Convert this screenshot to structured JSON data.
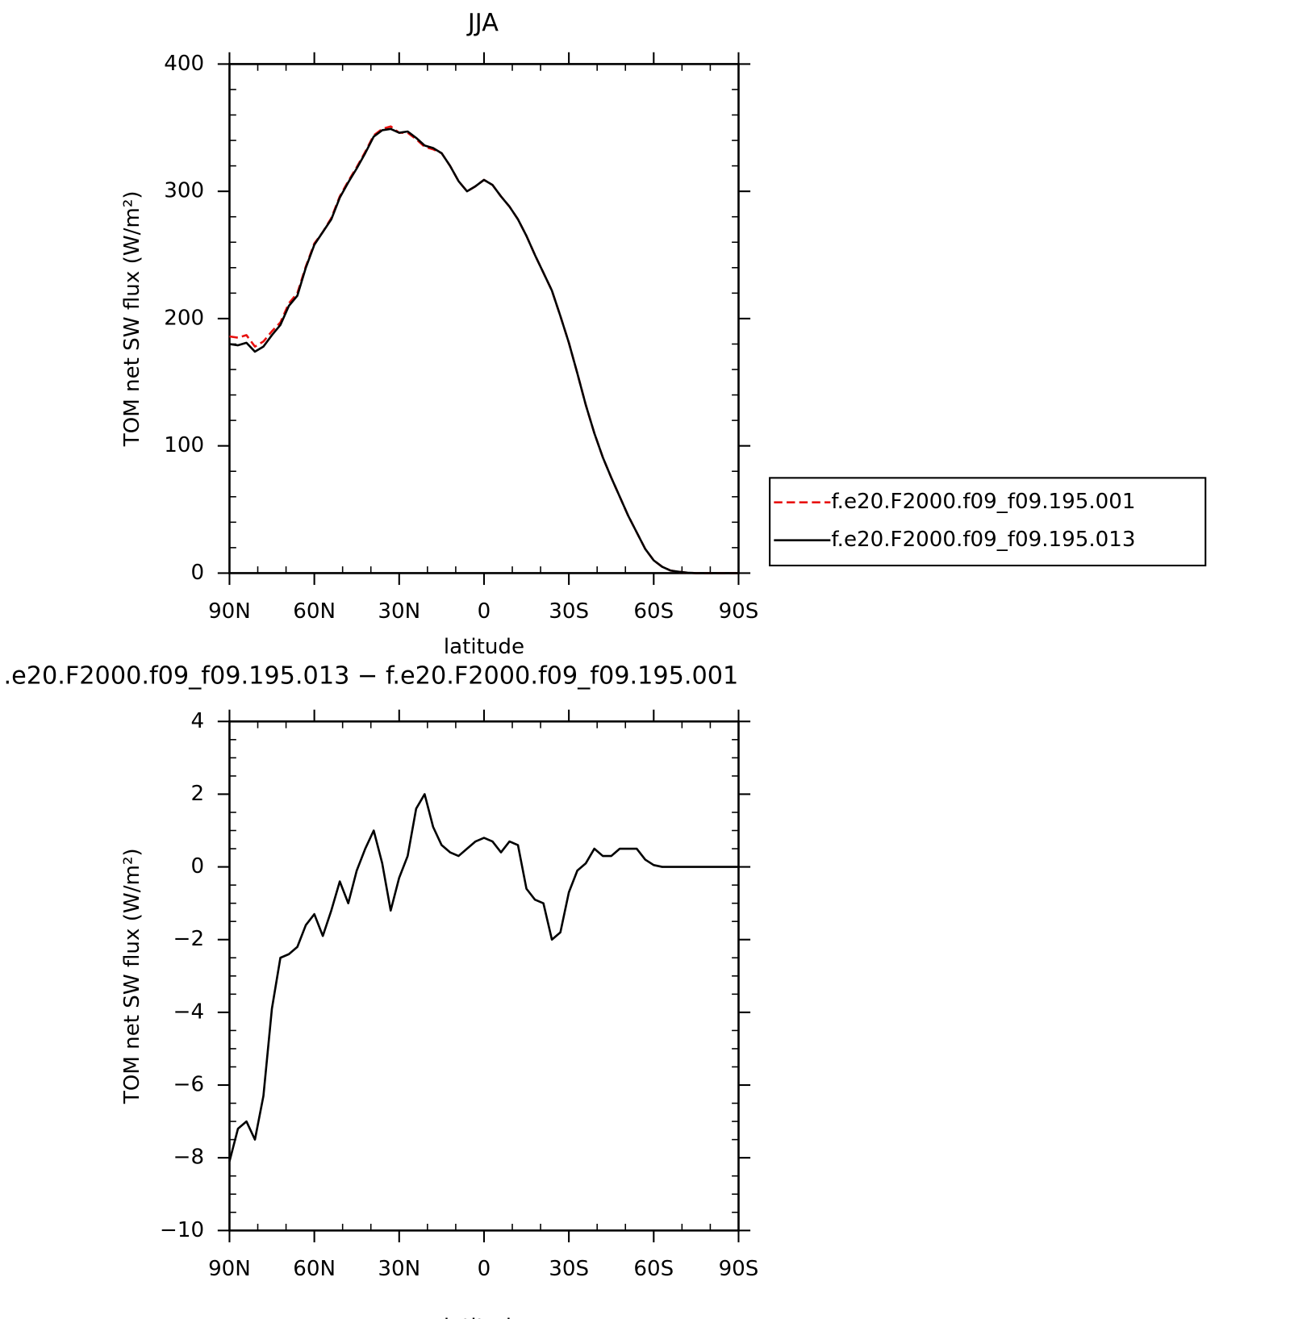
{
  "chart_data": [
    {
      "type": "line",
      "title": "JJA",
      "xlabel": "latitude",
      "ylabel": "TOM net SW flux (W/m²)",
      "x": [
        90,
        87,
        84,
        81,
        78,
        75,
        72,
        69,
        66,
        63,
        60,
        57,
        54,
        51,
        48,
        45,
        42,
        39,
        36,
        33,
        30,
        27,
        24,
        21,
        18,
        15,
        12,
        9,
        6,
        3,
        0,
        -3,
        -6,
        -9,
        -12,
        -15,
        -18,
        -21,
        -24,
        -27,
        -30,
        -33,
        -36,
        -39,
        -42,
        -45,
        -48,
        -51,
        -54,
        -57,
        -60,
        -63,
        -66,
        -69,
        -72,
        -75,
        -78,
        -81,
        -84,
        -87,
        -90
      ],
      "series": [
        {
          "name": "f.e20.F2000.f09_f09.195.001",
          "color": "#e8110f",
          "linestyle": "dashed",
          "values": [
            186,
            185,
            187,
            178,
            182,
            190,
            197,
            212,
            220,
            241,
            259,
            268,
            279,
            296,
            308,
            319,
            331,
            344,
            349,
            351,
            346,
            346,
            341,
            335,
            333,
            330,
            320,
            308,
            300,
            304,
            309,
            305,
            296,
            288,
            278,
            265,
            250,
            236,
            222,
            202,
            181,
            157,
            132,
            110,
            91,
            75,
            60,
            45,
            32,
            19,
            10,
            5,
            2,
            1,
            0.3,
            0,
            0,
            0,
            0,
            0,
            0
          ]
        },
        {
          "name": "f.e20.F2000.f09_f09.195.013",
          "color": "#000000",
          "linestyle": "solid",
          "values": [
            180,
            179,
            181,
            174,
            178,
            187,
            195,
            210,
            218,
            240,
            258,
            268,
            278,
            295,
            307,
            318,
            330,
            343,
            348,
            349,
            346,
            347,
            342,
            336,
            334,
            330,
            320,
            308,
            300,
            304,
            309,
            305,
            296,
            288,
            278,
            265,
            250,
            236,
            222,
            202,
            181,
            157,
            132,
            110,
            91,
            75,
            60,
            45,
            32,
            19,
            10,
            5,
            2,
            1,
            0.3,
            0,
            0,
            0,
            0,
            0,
            0
          ]
        }
      ],
      "xlim": [
        90,
        -90
      ],
      "xticks": [
        {
          "value": 90,
          "label": "90N"
        },
        {
          "value": 60,
          "label": "60N"
        },
        {
          "value": 30,
          "label": "30N"
        },
        0,
        {
          "value": -30,
          "label": "30S"
        },
        {
          "value": -60,
          "label": "60S"
        },
        {
          "value": -90,
          "label": "90S"
        }
      ],
      "ylim": [
        0,
        400
      ],
      "yticks": [
        0,
        100,
        200,
        300,
        400
      ],
      "legend": "right-outside"
    },
    {
      "type": "line",
      "title": ".e20.F2000.f09_f09.195.013 − f.e20.F2000.f09_f09.195.001",
      "xlabel": "latitude",
      "ylabel": "TOM net SW flux (W/m²)",
      "x": [
        90,
        87,
        84,
        81,
        78,
        75,
        72,
        69,
        66,
        63,
        60,
        57,
        54,
        51,
        48,
        45,
        42,
        39,
        36,
        33,
        30,
        27,
        24,
        21,
        18,
        15,
        12,
        9,
        6,
        3,
        0,
        -3,
        -6,
        -9,
        -12,
        -15,
        -18,
        -21,
        -24,
        -27,
        -30,
        -33,
        -36,
        -39,
        -42,
        -45,
        -48,
        -51,
        -54,
        -57,
        -60,
        -63,
        -66,
        -69,
        -72,
        -75,
        -78,
        -81,
        -84,
        -87,
        -90
      ],
      "series": [
        {
          "color": "#000000",
          "linestyle": "solid",
          "values": [
            -8.1,
            -7.2,
            -7.0,
            -7.5,
            -6.3,
            -3.9,
            -2.5,
            -2.4,
            -2.2,
            -1.6,
            -1.3,
            -1.9,
            -1.2,
            -0.4,
            -1.0,
            -0.1,
            0.5,
            1.0,
            0.1,
            -1.2,
            -0.3,
            0.3,
            1.6,
            2.0,
            1.1,
            0.6,
            0.4,
            0.3,
            0.5,
            0.7,
            0.8,
            0.7,
            0.4,
            0.7,
            0.6,
            -0.6,
            -0.9,
            -1.0,
            -2.0,
            -1.8,
            -0.7,
            -0.1,
            0.1,
            0.5,
            0.3,
            0.3,
            0.5,
            0.5,
            0.5,
            0.2,
            0.05,
            0,
            0,
            0,
            0,
            0,
            0,
            0,
            0,
            0,
            0
          ]
        }
      ],
      "xlim": [
        90,
        -90
      ],
      "xticks": [
        {
          "value": 90,
          "label": "90N"
        },
        {
          "value": 60,
          "label": "60N"
        },
        {
          "value": 30,
          "label": "30N"
        },
        0,
        {
          "value": -30,
          "label": "30S"
        },
        {
          "value": -60,
          "label": "60S"
        },
        {
          "value": -90,
          "label": "90S"
        }
      ],
      "ylim": [
        -10,
        4
      ],
      "yticks": [
        {
          "value": -10,
          "label": "−10"
        },
        {
          "value": -8,
          "label": "−8"
        },
        {
          "value": -6,
          "label": "−6"
        },
        {
          "value": -4,
          "label": "−4"
        },
        {
          "value": -2,
          "label": "−2"
        },
        0,
        2,
        4
      ]
    }
  ]
}
